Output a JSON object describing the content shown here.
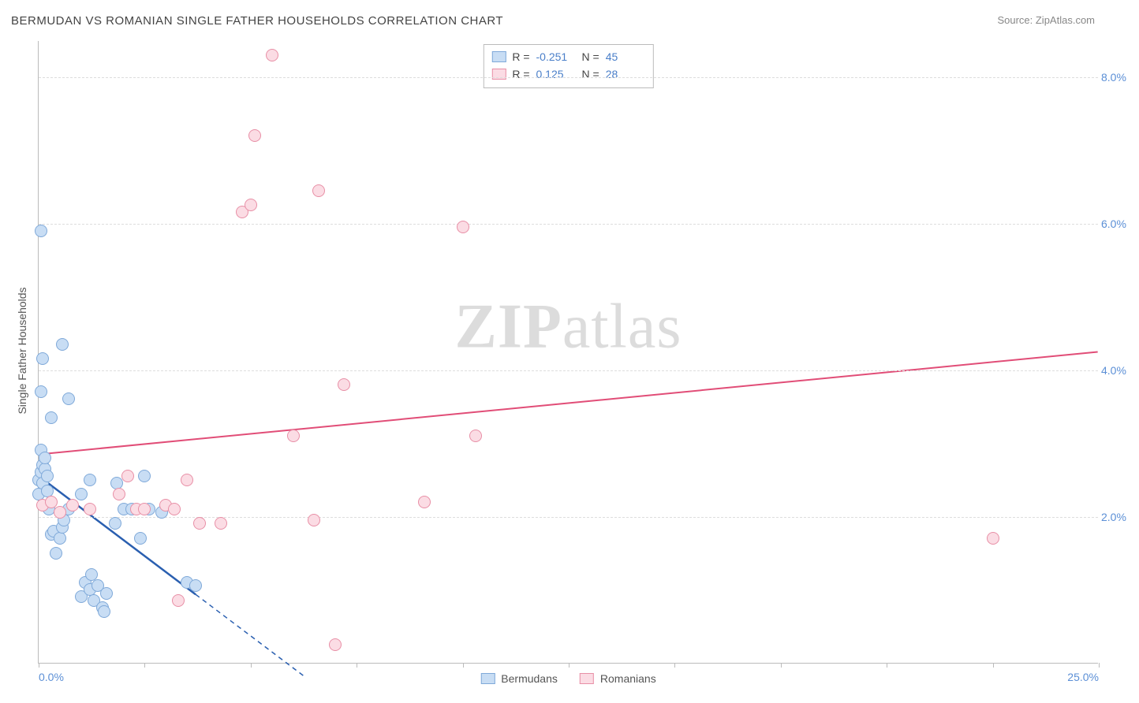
{
  "title": "BERMUDAN VS ROMANIAN SINGLE FATHER HOUSEHOLDS CORRELATION CHART",
  "source": "Source: ZipAtlas.com",
  "ylabel": "Single Father Households",
  "watermark": {
    "bold": "ZIP",
    "light": "atlas"
  },
  "chart": {
    "type": "scatter",
    "background_color": "#ffffff",
    "grid_color": "#dddddd",
    "axis_color": "#bbbbbb",
    "xlim": [
      0,
      25
    ],
    "ylim": [
      0,
      8.5
    ],
    "xtick_positions": [
      0,
      2.5,
      5,
      7.5,
      10,
      12.5,
      15,
      17.5,
      20,
      22.5,
      25
    ],
    "xtick_labels": {
      "0": "0.0%",
      "25": "25.0%"
    },
    "ytick_positions": [
      2,
      4,
      6,
      8
    ],
    "ytick_labels": {
      "2": "2.0%",
      "4": "4.0%",
      "6": "6.0%",
      "8": "8.0%"
    },
    "tick_label_color": "#5b8fd6",
    "tick_label_fontsize": 14,
    "marker_radius": 8,
    "marker_stroke_width": 1.5,
    "series": [
      {
        "name": "Bermudans",
        "fill_color": "#c8ddf4",
        "stroke_color": "#7fa9d9",
        "r_value": "-0.251",
        "n_value": "45",
        "trend": {
          "x1": 0,
          "y1": 2.55,
          "x2": 6.3,
          "y2": -0.2,
          "color": "#2a5fb0",
          "width": 2.5,
          "dash_from_x": 3.7
        },
        "points": [
          [
            0.0,
            2.5
          ],
          [
            0.0,
            2.3
          ],
          [
            0.05,
            2.6
          ],
          [
            0.05,
            2.9
          ],
          [
            0.1,
            2.45
          ],
          [
            0.1,
            2.7
          ],
          [
            0.15,
            2.65
          ],
          [
            0.15,
            2.8
          ],
          [
            0.2,
            2.55
          ],
          [
            0.2,
            2.35
          ],
          [
            0.25,
            2.1
          ],
          [
            0.3,
            1.75
          ],
          [
            0.35,
            1.8
          ],
          [
            0.4,
            1.5
          ],
          [
            0.5,
            1.7
          ],
          [
            0.55,
            1.85
          ],
          [
            0.6,
            1.95
          ],
          [
            0.7,
            2.1
          ],
          [
            0.3,
            3.35
          ],
          [
            0.05,
            3.7
          ],
          [
            0.1,
            4.15
          ],
          [
            0.55,
            4.35
          ],
          [
            0.7,
            3.6
          ],
          [
            0.05,
            5.9
          ],
          [
            1.0,
            0.9
          ],
          [
            1.1,
            1.1
          ],
          [
            1.2,
            1.0
          ],
          [
            1.25,
            1.2
          ],
          [
            1.3,
            0.85
          ],
          [
            1.4,
            1.05
          ],
          [
            1.5,
            0.75
          ],
          [
            1.55,
            0.7
          ],
          [
            1.6,
            0.95
          ],
          [
            1.8,
            1.9
          ],
          [
            1.85,
            2.45
          ],
          [
            2.0,
            2.1
          ],
          [
            2.2,
            2.1
          ],
          [
            2.4,
            1.7
          ],
          [
            2.5,
            2.55
          ],
          [
            2.6,
            2.1
          ],
          [
            2.9,
            2.05
          ],
          [
            3.5,
            1.1
          ],
          [
            3.7,
            1.05
          ],
          [
            1.0,
            2.3
          ],
          [
            1.2,
            2.5
          ]
        ]
      },
      {
        "name": "Romanians",
        "fill_color": "#fbdce4",
        "stroke_color": "#e88fa6",
        "r_value": "0.125",
        "n_value": "28",
        "trend": {
          "x1": 0,
          "y1": 2.85,
          "x2": 25,
          "y2": 4.25,
          "color": "#e14d77",
          "width": 2
        },
        "points": [
          [
            0.1,
            2.15
          ],
          [
            0.3,
            2.2
          ],
          [
            0.5,
            2.05
          ],
          [
            0.8,
            2.15
          ],
          [
            1.2,
            2.1
          ],
          [
            1.9,
            2.3
          ],
          [
            2.3,
            2.1
          ],
          [
            2.5,
            2.1
          ],
          [
            3.0,
            2.15
          ],
          [
            3.2,
            2.1
          ],
          [
            3.5,
            2.5
          ],
          [
            3.8,
            1.9
          ],
          [
            4.3,
            1.9
          ],
          [
            4.8,
            6.15
          ],
          [
            5.0,
            6.25
          ],
          [
            5.1,
            7.2
          ],
          [
            5.5,
            8.3
          ],
          [
            6.0,
            3.1
          ],
          [
            6.5,
            1.95
          ],
          [
            6.6,
            6.45
          ],
          [
            7.0,
            0.25
          ],
          [
            7.2,
            3.8
          ],
          [
            9.1,
            2.2
          ],
          [
            10.0,
            5.95
          ],
          [
            10.3,
            3.1
          ],
          [
            22.5,
            1.7
          ],
          [
            3.3,
            0.85
          ],
          [
            2.1,
            2.55
          ]
        ]
      }
    ],
    "legend_top": {
      "r_label": "R =",
      "n_label": "N ="
    },
    "legend_bottom": [
      {
        "label": "Bermudans",
        "fill": "#c8ddf4",
        "stroke": "#7fa9d9"
      },
      {
        "label": "Romanians",
        "fill": "#fbdce4",
        "stroke": "#e88fa6"
      }
    ]
  }
}
